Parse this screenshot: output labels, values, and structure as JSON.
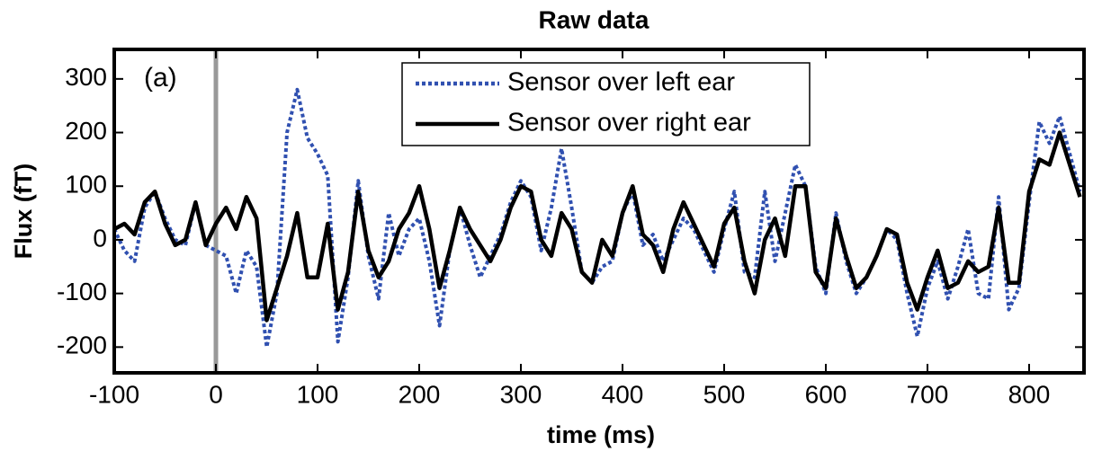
{
  "chart_data": {
    "type": "line",
    "title": "Raw data",
    "annotation": "(a)",
    "xlabel": "time (ms)",
    "ylabel": "Flux (fT)",
    "x": [
      -100,
      -90,
      -80,
      -70,
      -60,
      -50,
      -40,
      -30,
      -20,
      -10,
      0,
      10,
      20,
      30,
      40,
      50,
      60,
      70,
      80,
      90,
      100,
      110,
      120,
      130,
      140,
      150,
      160,
      170,
      180,
      190,
      200,
      210,
      220,
      230,
      240,
      250,
      260,
      270,
      280,
      290,
      300,
      310,
      320,
      330,
      340,
      350,
      360,
      370,
      380,
      390,
      400,
      410,
      420,
      430,
      440,
      450,
      460,
      470,
      480,
      490,
      500,
      510,
      520,
      530,
      540,
      550,
      560,
      570,
      580,
      590,
      600,
      610,
      620,
      630,
      640,
      650,
      660,
      670,
      680,
      690,
      700,
      710,
      720,
      730,
      740,
      750,
      760,
      770,
      780,
      790,
      800,
      810,
      820,
      830,
      840,
      850
    ],
    "series": [
      {
        "name": "Sensor over left ear",
        "color": "#3050b0",
        "dash": true,
        "values": [
          20,
          -20,
          -40,
          60,
          90,
          40,
          0,
          -10,
          70,
          -10,
          -20,
          -30,
          -100,
          -20,
          -50,
          -200,
          -100,
          200,
          280,
          190,
          160,
          120,
          -190,
          -70,
          110,
          -30,
          -110,
          50,
          -30,
          20,
          40,
          -40,
          -160,
          -20,
          60,
          -10,
          -70,
          -30,
          10,
          70,
          110,
          80,
          -20,
          60,
          170,
          60,
          -60,
          -80,
          -50,
          -40,
          50,
          90,
          -10,
          10,
          -40,
          0,
          40,
          20,
          -20,
          -60,
          20,
          90,
          -60,
          -70,
          90,
          -40,
          50,
          140,
          100,
          -50,
          -100,
          50,
          -40,
          -100,
          -70,
          -30,
          20,
          0,
          -100,
          -180,
          -90,
          -40,
          -110,
          -50,
          20,
          -100,
          -110,
          80,
          -130,
          -90,
          70,
          220,
          180,
          230,
          160,
          90
        ]
      },
      {
        "name": "Sensor over right ear",
        "color": "#000000",
        "dash": false,
        "values": [
          20,
          30,
          10,
          70,
          90,
          30,
          -10,
          0,
          70,
          -10,
          30,
          60,
          20,
          80,
          40,
          -150,
          -90,
          -30,
          50,
          -70,
          -70,
          30,
          -130,
          -60,
          90,
          -20,
          -70,
          -40,
          20,
          50,
          100,
          20,
          -90,
          -20,
          60,
          20,
          -10,
          -40,
          0,
          60,
          100,
          90,
          0,
          -30,
          50,
          20,
          -60,
          -80,
          0,
          -30,
          50,
          100,
          10,
          -10,
          -60,
          20,
          70,
          30,
          -10,
          -50,
          30,
          60,
          -40,
          -100,
          0,
          40,
          -30,
          100,
          100,
          -60,
          -90,
          40,
          -30,
          -90,
          -70,
          -30,
          20,
          10,
          -80,
          -130,
          -70,
          -20,
          -90,
          -80,
          -40,
          -60,
          -50,
          60,
          -80,
          -80,
          90,
          150,
          140,
          200,
          140,
          80
        ]
      }
    ],
    "vline": 0,
    "vline_color": "#999999",
    "xlim": [
      -100,
      854
    ],
    "ylim": [
      -248,
      355
    ],
    "xticks": [
      -100,
      0,
      100,
      200,
      300,
      400,
      500,
      600,
      700,
      800
    ],
    "yticks": [
      -200,
      -100,
      0,
      100,
      200,
      300
    ],
    "legend": "upper center",
    "grid": false
  }
}
